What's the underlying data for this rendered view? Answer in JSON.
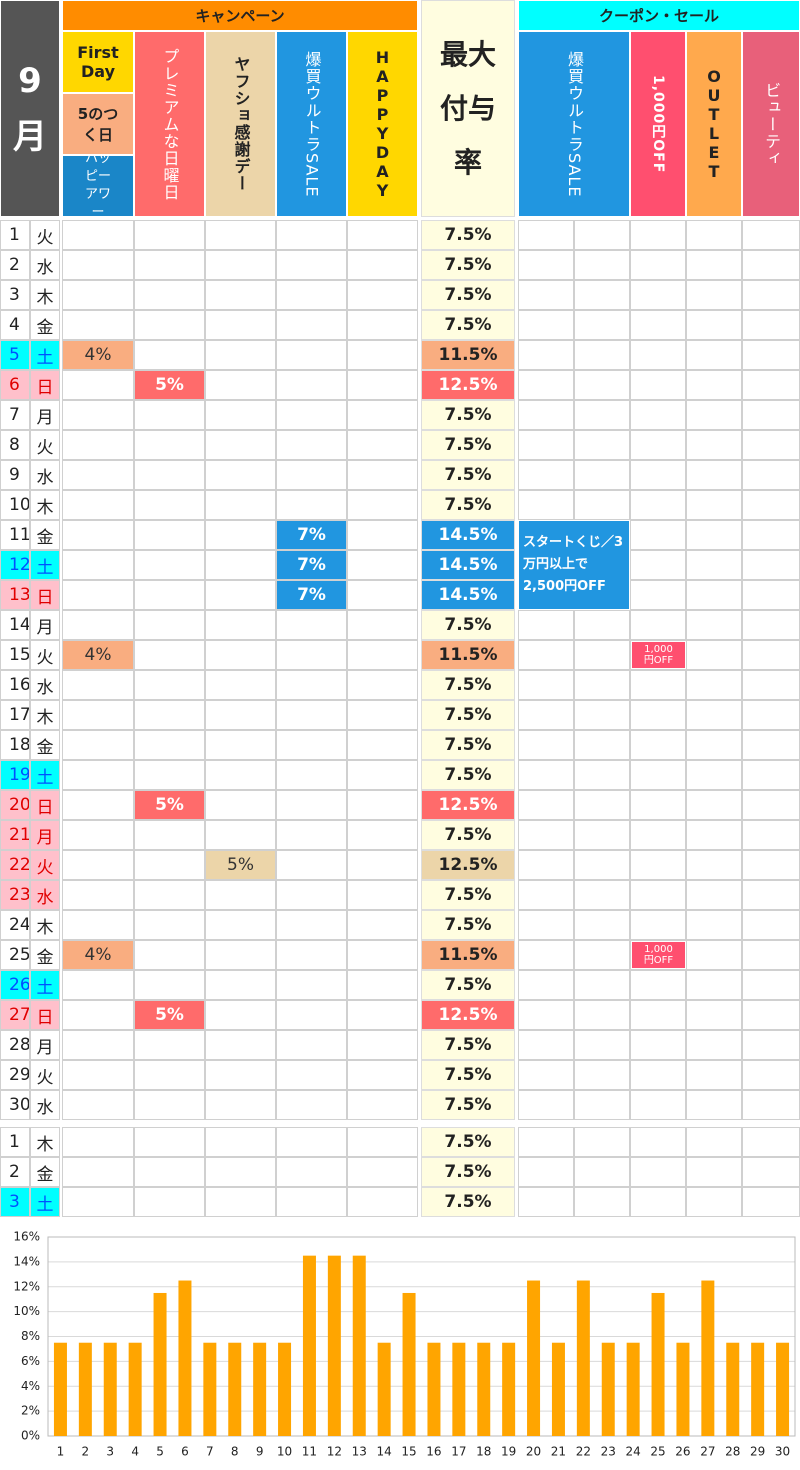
{
  "header": {
    "month": "9月",
    "campaign": "キャンペーン",
    "first_day": "First Day",
    "fifth_day": "5のつく日",
    "happy_hour": "ハッピーアワー",
    "campaign_columns": [
      "プレミアムな日曜日",
      "ヤフショ感謝デー",
      "爆買ウルトラSALE",
      "HAPPYDAY"
    ],
    "max_rate": "最大付与率",
    "coupon": "クーポン・セール",
    "coupon_columns": [
      "爆買ウルトラSALE",
      "1,000円OFF",
      "OUTLET",
      "ビューティ"
    ]
  },
  "day_styles": {
    "saturday": {
      "background": "#00ffff",
      "text": "#0050ff"
    },
    "holiday": {
      "background": "#ffc0cb",
      "text": "#e00000"
    }
  },
  "rows": [
    {
      "day": "1",
      "weekday": "火",
      "rate": "7.5%"
    },
    {
      "day": "2",
      "weekday": "水",
      "rate": "7.5%"
    },
    {
      "day": "3",
      "weekday": "木",
      "rate": "7.5%"
    },
    {
      "day": "4",
      "weekday": "金",
      "rate": "7.5%"
    },
    {
      "day": "5",
      "weekday": "土",
      "style": "saturday",
      "first_day": "4%",
      "rate": "11.5%"
    },
    {
      "day": "6",
      "weekday": "日",
      "style": "holiday",
      "premium_sunday": "5%",
      "rate": "12.5%"
    },
    {
      "day": "7",
      "weekday": "月",
      "rate": "7.5%"
    },
    {
      "day": "8",
      "weekday": "火",
      "rate": "7.5%"
    },
    {
      "day": "9",
      "weekday": "水",
      "rate": "7.5%"
    },
    {
      "day": "10",
      "weekday": "木",
      "rate": "7.5%"
    },
    {
      "day": "11",
      "weekday": "金",
      "ultra_sale": "7%",
      "rate": "14.5%",
      "ultra_coupon": "スタートくじ／3万円以上で2,500円OFF"
    },
    {
      "day": "12",
      "weekday": "土",
      "style": "saturday",
      "ultra_sale": "7%",
      "rate": "14.5%"
    },
    {
      "day": "13",
      "weekday": "日",
      "style": "holiday",
      "ultra_sale": "7%",
      "rate": "14.5%"
    },
    {
      "day": "14",
      "weekday": "月",
      "rate": "7.5%"
    },
    {
      "day": "15",
      "weekday": "火",
      "first_day": "4%",
      "rate": "11.5%",
      "off_coupon": "1,000円OFF"
    },
    {
      "day": "16",
      "weekday": "水",
      "rate": "7.5%"
    },
    {
      "day": "17",
      "weekday": "木",
      "rate": "7.5%"
    },
    {
      "day": "18",
      "weekday": "金",
      "rate": "7.5%"
    },
    {
      "day": "19",
      "weekday": "土",
      "style": "saturday",
      "rate": "7.5%"
    },
    {
      "day": "20",
      "weekday": "日",
      "style": "holiday",
      "premium_sunday": "5%",
      "rate": "12.5%"
    },
    {
      "day": "21",
      "weekday": "月",
      "style": "holiday",
      "rate": "7.5%"
    },
    {
      "day": "22",
      "weekday": "火",
      "style": "holiday",
      "thanks_day": "5%",
      "rate": "12.5%"
    },
    {
      "day": "23",
      "weekday": "水",
      "style": "holiday",
      "rate": "7.5%"
    },
    {
      "day": "24",
      "weekday": "木",
      "rate": "7.5%"
    },
    {
      "day": "25",
      "weekday": "金",
      "first_day": "4%",
      "rate": "11.5%",
      "off_coupon": "1,000円OFF"
    },
    {
      "day": "26",
      "weekday": "土",
      "style": "saturday",
      "rate": "7.5%"
    },
    {
      "day": "27",
      "weekday": "日",
      "style": "holiday",
      "premium_sunday": "5%",
      "rate": "12.5%"
    },
    {
      "day": "28",
      "weekday": "月",
      "rate": "7.5%"
    },
    {
      "day": "29",
      "weekday": "火",
      "rate": "7.5%"
    },
    {
      "day": "30",
      "weekday": "水",
      "rate": "7.5%"
    }
  ],
  "next_month_rows": [
    {
      "day": "1",
      "weekday": "木",
      "rate": "7.5%"
    },
    {
      "day": "2",
      "weekday": "金",
      "rate": "7.5%"
    },
    {
      "day": "3",
      "weekday": "土",
      "style": "saturday",
      "rate": "7.5%"
    }
  ],
  "chart_data": {
    "type": "bar",
    "categories": [
      "1",
      "2",
      "3",
      "4",
      "5",
      "6",
      "7",
      "8",
      "9",
      "10",
      "11",
      "12",
      "13",
      "14",
      "15",
      "16",
      "17",
      "18",
      "19",
      "20",
      "21",
      "22",
      "23",
      "24",
      "25",
      "26",
      "27",
      "28",
      "29",
      "30"
    ],
    "values": [
      7.5,
      7.5,
      7.5,
      7.5,
      11.5,
      12.5,
      7.5,
      7.5,
      7.5,
      7.5,
      14.5,
      14.5,
      14.5,
      7.5,
      11.5,
      7.5,
      7.5,
      7.5,
      7.5,
      12.5,
      7.5,
      12.5,
      7.5,
      7.5,
      11.5,
      7.5,
      12.5,
      7.5,
      7.5,
      7.5
    ],
    "color": "#ffa500",
    "ylim": [
      0,
      16
    ],
    "yticks": [
      {
        "value": 0,
        "label": "0%"
      },
      {
        "value": 2,
        "label": "2%"
      },
      {
        "value": 4,
        "label": "4%"
      },
      {
        "value": 6,
        "label": "6%"
      },
      {
        "value": 8,
        "label": "8%"
      },
      {
        "value": 10,
        "label": "10%"
      },
      {
        "value": 12,
        "label": "12%"
      },
      {
        "value": 14,
        "label": "14%"
      },
      {
        "value": 16,
        "label": "16%"
      }
    ],
    "grid": true
  }
}
